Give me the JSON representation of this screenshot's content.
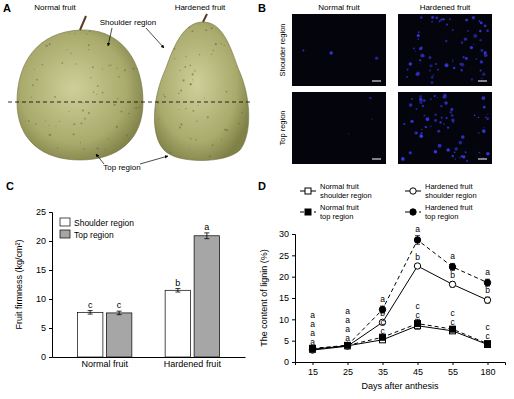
{
  "figure": {
    "panel_a": {
      "panel_label": "A",
      "columns": [
        "Normal fruit",
        "Hardened fruit"
      ],
      "annotations": [
        "Shoulder region",
        "Top region"
      ]
    },
    "panel_b": {
      "panel_label": "B",
      "columns": [
        "Normal fruit",
        "Hardened fruit"
      ],
      "rows": [
        "Shoulder region",
        "Top region"
      ]
    }
  },
  "chart_data": [
    {
      "panel_label": "C",
      "type": "bar",
      "y_label": "Fruit firmness (kg/cm²)",
      "categories": [
        "Normal fruit",
        "Hardened fruit"
      ],
      "series": [
        {
          "name": "Shoulder region",
          "color": "#ffffff",
          "values": [
            7.7,
            11.5
          ],
          "errors": [
            0.3,
            0.3
          ],
          "significance": [
            "c",
            "b"
          ]
        },
        {
          "name": "Top region",
          "color": "#a6a6a6",
          "values": [
            7.6,
            20.9
          ],
          "errors": [
            0.3,
            0.5
          ],
          "significance": [
            "c",
            "a"
          ]
        }
      ],
      "ylim": [
        0,
        25
      ],
      "yticks": [
        0,
        5,
        10,
        15,
        20,
        25
      ],
      "grid": false,
      "legend": "top-left"
    },
    {
      "panel_label": "D",
      "type": "line",
      "x_label": "Days after anthesis",
      "y_label": "The content of lignin (%)",
      "categories": [
        "15",
        "25",
        "35",
        "45",
        "55",
        "180"
      ],
      "series": [
        {
          "name": "Normal fruit shoulder region",
          "color": "#000000",
          "marker": "open-square",
          "line_style": "solid",
          "values": [
            3.0,
            3.8,
            5.2,
            8.5,
            7.3,
            4.1
          ],
          "errors": [
            0.3,
            0.3,
            0.4,
            0.8,
            0.5,
            0.4
          ],
          "significance": [
            "a",
            "a",
            "c",
            "c",
            "c",
            "c"
          ]
        },
        {
          "name": "Normal fruit top region",
          "color": "#000000",
          "marker": "square",
          "line_style": "dashed",
          "values": [
            3.2,
            3.9,
            5.8,
            9.0,
            7.7,
            4.3
          ],
          "errors": [
            0.3,
            0.3,
            0.4,
            1.0,
            0.6,
            0.5
          ],
          "significance": [
            "a",
            "a",
            "c",
            "c",
            "c",
            "c"
          ]
        },
        {
          "name": "Hardened fruit shoulder region",
          "color": "#000000",
          "marker": "open-circle",
          "line_style": "solid",
          "values": [
            2.8,
            3.7,
            9.3,
            22.5,
            18.2,
            14.5
          ],
          "errors": [
            0.3,
            0.3,
            0.5,
            0.5,
            0.6,
            0.7
          ],
          "significance": [
            "a",
            "a",
            "b",
            "b",
            "b",
            "b"
          ]
        },
        {
          "name": "Hardened fruit top region",
          "color": "#000000",
          "marker": "circle",
          "line_style": "dashed",
          "values": [
            3.0,
            3.9,
            12.3,
            28.6,
            22.3,
            18.6
          ],
          "errors": [
            0.4,
            0.4,
            0.8,
            1.0,
            0.8,
            0.8
          ],
          "significance": [
            "a",
            "a",
            "a",
            "a",
            "a",
            "a"
          ]
        }
      ],
      "ylim": [
        0,
        30
      ],
      "yticks": [
        0,
        5,
        10,
        15,
        20,
        25,
        30
      ],
      "grid": false,
      "legend": "top"
    }
  ]
}
